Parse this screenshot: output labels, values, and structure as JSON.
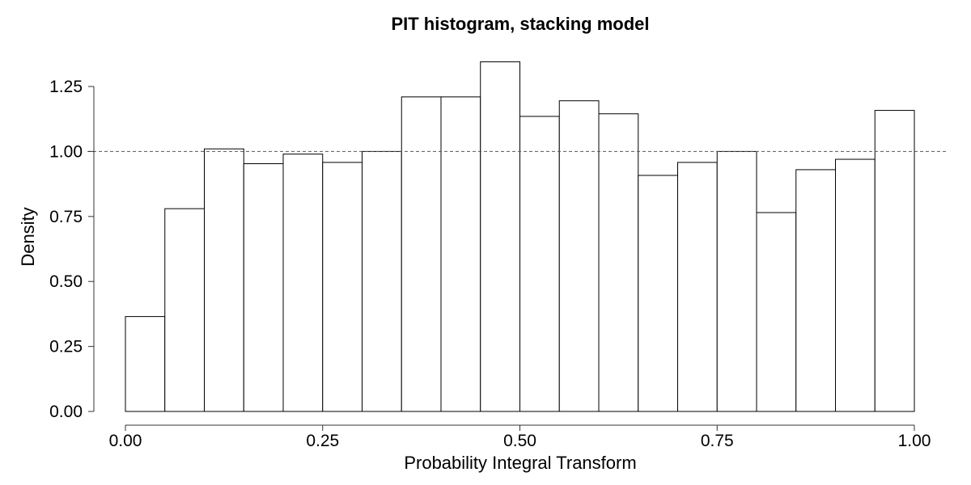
{
  "chart_data": {
    "type": "bar",
    "title": "PIT histogram, stacking model",
    "xlabel": "Probability Integral Transform",
    "ylabel": "Density",
    "xlim": [
      0,
      1
    ],
    "ylim": [
      0,
      1.35
    ],
    "bin_width": 0.05,
    "bin_starts": [
      0.0,
      0.05,
      0.1,
      0.15,
      0.2,
      0.25,
      0.3,
      0.35,
      0.4,
      0.45,
      0.5,
      0.55,
      0.6,
      0.65,
      0.7,
      0.75,
      0.8,
      0.85,
      0.9,
      0.95
    ],
    "values": [
      0.365,
      0.78,
      1.01,
      0.953,
      0.99,
      0.958,
      1.0,
      1.21,
      1.21,
      1.345,
      1.135,
      1.195,
      1.145,
      0.908,
      0.958,
      1.0,
      0.765,
      0.93,
      0.97,
      1.158
    ],
    "reference_line": 1.0,
    "x_ticks": [
      0,
      0.25,
      0.5,
      0.75,
      1.0
    ],
    "x_tick_labels": [
      "0.00",
      "0.25",
      "0.50",
      "0.75",
      "1.00"
    ],
    "y_ticks": [
      0,
      0.25,
      0.5,
      0.75,
      1.0,
      1.25
    ],
    "y_tick_labels": [
      "0.00",
      "0.25",
      "0.50",
      "0.75",
      "1.00",
      "1.25"
    ],
    "grid": false,
    "colors": {
      "bar_fill": "#ffffff",
      "bar_edge": "#000000",
      "reference_line": "#555555"
    }
  }
}
